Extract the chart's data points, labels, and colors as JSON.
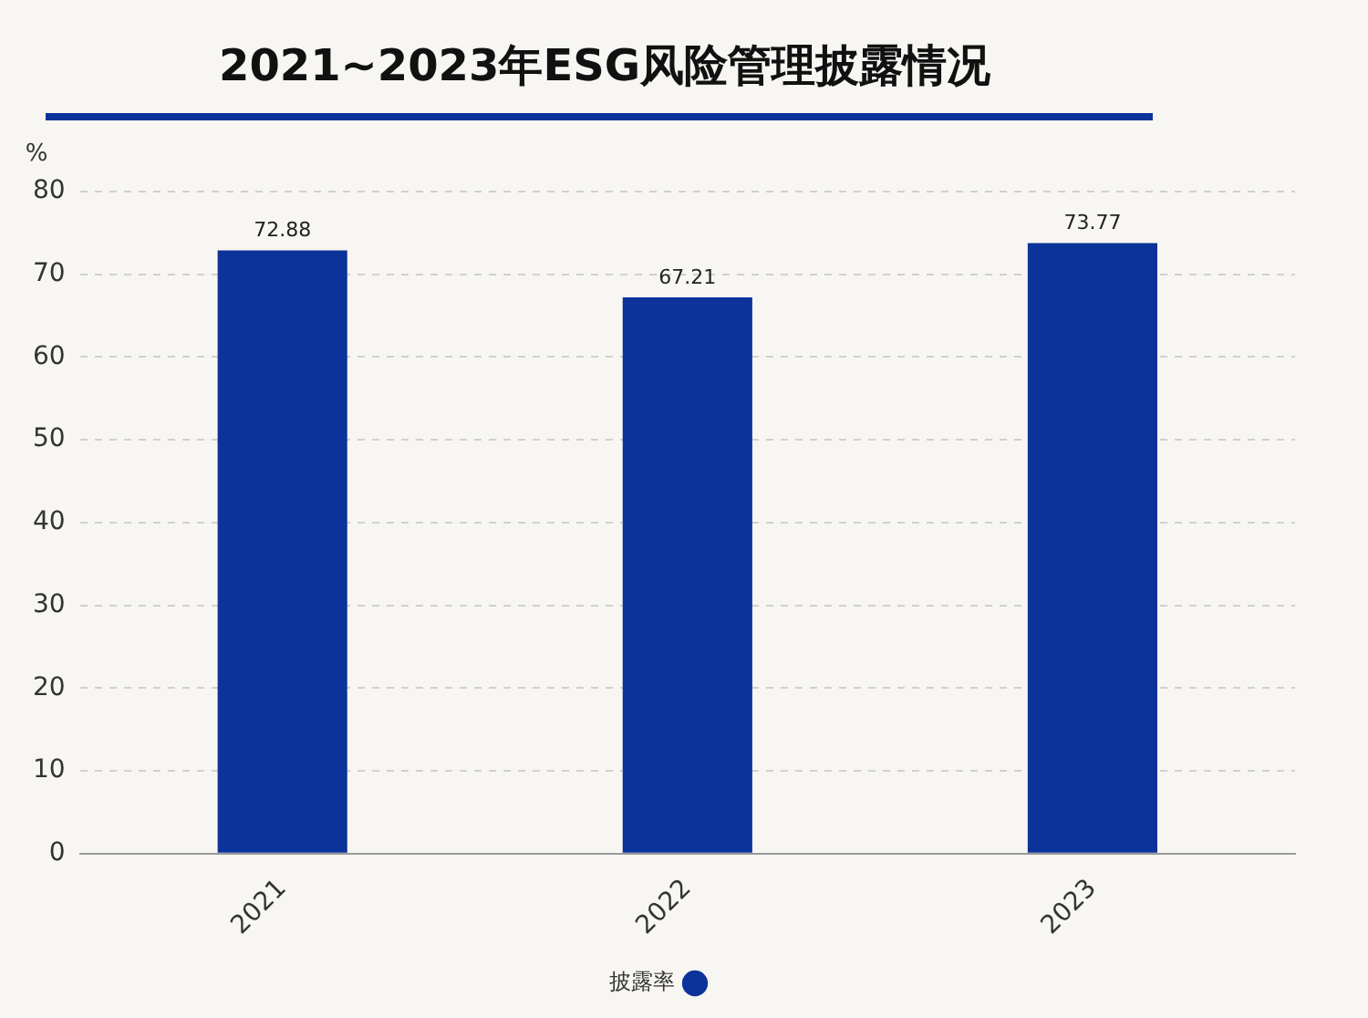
{
  "chart_data": {
    "type": "bar",
    "title": "2021~2023年ESG风险管理披露情况",
    "ylabel": "%",
    "categories": [
      "2021",
      "2022",
      "2023"
    ],
    "series": [
      {
        "name": "披露率",
        "color": "#0c3399",
        "values": [
          72.88,
          67.21,
          73.77
        ]
      }
    ],
    "ylim": [
      0,
      80
    ],
    "yticks": [
      0,
      10,
      20,
      30,
      40,
      50,
      60,
      70,
      80
    ],
    "grid": "y",
    "legend": "bottom",
    "data_labels": true
  }
}
